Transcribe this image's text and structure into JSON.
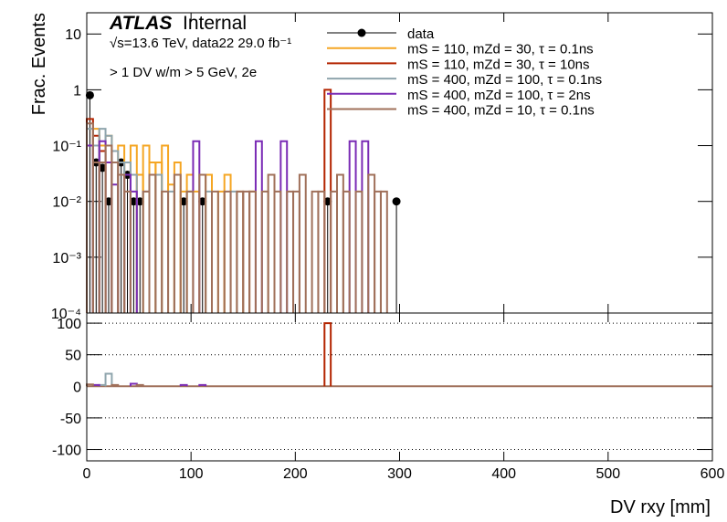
{
  "chart_data": [
    {
      "type": "step",
      "log_y": true,
      "legend": "upper-center",
      "atlas_label": "ATLAS",
      "status": "Internal",
      "energy_label": "√s=13.6 TeV, data22 29.0 fb⁻¹",
      "selection": "> 1 DV w/m > 5 GeV, 2e",
      "ylabel": "Frac. Events",
      "xlim": [
        0,
        600
      ],
      "ylim": [
        0.0001,
        24
      ],
      "yticks": [
        {
          "value": 0.0001,
          "label": "10⁻⁴"
        },
        {
          "value": 0.001,
          "label": "10⁻³"
        },
        {
          "value": 0.01,
          "label": "10⁻²"
        },
        {
          "value": 0.1,
          "label": "10⁻¹"
        },
        1,
        10
      ],
      "series": [
        {
          "name": "data",
          "color": "#000000",
          "marker": "circle",
          "x": [
            3,
            9,
            15,
            21,
            33,
            39,
            45,
            51,
            93,
            111,
            231,
            297
          ],
          "values": [
            0.8,
            0.05,
            0.04,
            0.01,
            0.05,
            0.03,
            0.01,
            0.01,
            0.01,
            0.01,
            0.01,
            0.01
          ]
        },
        {
          "name": "mS = 110, mZd = 30, τ = 0.1ns",
          "color": "#f5a623",
          "x": [
            9,
            15,
            21,
            27,
            33,
            39,
            45,
            51,
            57,
            63,
            69,
            75,
            81,
            87,
            93,
            99,
            105,
            117,
            129,
            135,
            147,
            159
          ],
          "values": [
            0.2,
            0.1,
            0.15,
            0.05,
            0.1,
            0.05,
            0.1,
            0.03,
            0.1,
            0.05,
            0.05,
            0.1,
            0.02,
            0.05,
            0.015,
            0.03,
            0.015,
            0.03,
            0.015,
            0.03,
            0.015,
            0.015
          ]
        },
        {
          "name": "mS = 110, mZd = 30, τ = 10ns",
          "color": "#b32400",
          "x": [
            3,
            9,
            15,
            231
          ],
          "values": [
            0.3,
            0.15,
            0.08,
            1.0
          ]
        },
        {
          "name": "mS = 400, mZd = 100, τ = 0.1ns",
          "color": "#8fa5ad",
          "x": [
            3,
            9,
            15,
            21,
            27,
            33,
            39,
            45,
            57,
            69,
            81,
            99,
            117,
            141
          ],
          "values": [
            0.2,
            0.1,
            0.2,
            0.15,
            0.08,
            0.05,
            0.05,
            0.03,
            0.015,
            0.03,
            0.015,
            0.015,
            0.015,
            0.015
          ]
        },
        {
          "name": "mS = 400, mZd = 100, τ = 2ns",
          "color": "#7a2bb5",
          "x": [
            3,
            9,
            15,
            21,
            27,
            39,
            45,
            105,
            165,
            189,
            255,
            267
          ],
          "values": [
            0.1,
            0.05,
            0.12,
            0.05,
            0.02,
            0.03,
            0.015,
            0.12,
            0.12,
            0.12,
            0.12,
            0.12
          ]
        },
        {
          "name": "mS = 400, mZd = 10, τ = 0.1ns",
          "color": "#a0705a",
          "x": [
            3,
            9,
            15,
            21,
            27,
            33,
            39,
            57,
            63,
            75,
            87,
            99,
            111,
            123,
            135,
            147,
            153,
            159,
            171,
            177,
            183,
            195,
            201,
            207,
            219,
            225,
            237,
            243,
            249,
            261,
            273,
            279,
            285
          ],
          "values": [
            0.25,
            0.05,
            0.05,
            0.1,
            0.05,
            0.03,
            0.015,
            0.015,
            0.03,
            0.015,
            0.03,
            0.015,
            0.03,
            0.015,
            0.015,
            0.015,
            0.015,
            0.015,
            0.015,
            0.03,
            0.015,
            0.015,
            0.015,
            0.03,
            0.015,
            0.015,
            0.015,
            0.03,
            0.015,
            0.015,
            0.03,
            0.015,
            0.015
          ]
        }
      ]
    },
    {
      "type": "step",
      "grid": true,
      "xlabel": "DV rxy [mm]",
      "xlim": [
        0,
        600
      ],
      "xticks": [
        0,
        100,
        200,
        300,
        400,
        500,
        600
      ],
      "ylim": [
        -118,
        116
      ],
      "yticks": [
        -100,
        -50,
        0,
        50,
        100
      ],
      "series": [
        {
          "color": "#8fa5ad",
          "x": [
            15,
            21
          ],
          "values": [
            2,
            20
          ]
        },
        {
          "color": "#7a2bb5",
          "x": [
            9,
            45,
            93,
            111
          ],
          "values": [
            2,
            4,
            2,
            2
          ]
        },
        {
          "color": "#b32400",
          "x": [
            231
          ],
          "values": [
            100
          ]
        },
        {
          "color": "#a0705a",
          "x": [
            3,
            27,
            51
          ],
          "values": [
            3,
            2,
            2
          ]
        }
      ]
    }
  ]
}
